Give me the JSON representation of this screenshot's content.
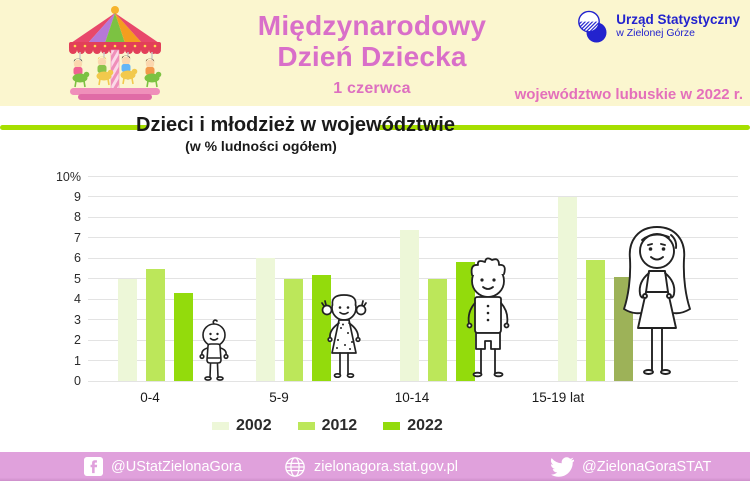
{
  "header": {
    "title_line1": "Międzynarodowy",
    "title_line2": "Dzień Dziecka",
    "date": "1 czerwca",
    "region_note": "województwo lubuskie w 2022 r.",
    "logo": {
      "line1": "Urząd Statystyczny",
      "line2": "w Zielonej Górze"
    }
  },
  "section": {
    "title": "Dzieci i młodzież w województwie",
    "subtitle": "(w % ludności ogółem)"
  },
  "chart_data": {
    "type": "bar",
    "title": "Dzieci i młodzież w województwie",
    "subtitle": "(w % ludności ogółem)",
    "unit": "% ludności ogółem",
    "categories": [
      "0-4",
      "5-9",
      "10-14",
      "15-19 lat"
    ],
    "series": [
      {
        "name": "2002",
        "color": "#EDF7D8",
        "values": [
          5.0,
          6.0,
          7.4,
          9.0
        ]
      },
      {
        "name": "2012",
        "color": "#BCE75A",
        "values": [
          5.5,
          5.0,
          5.0,
          5.9
        ]
      },
      {
        "name": "2022",
        "color": "#93DB0C",
        "values": [
          4.3,
          5.2,
          5.8,
          5.1
        ],
        "bar_colors": [
          null,
          null,
          null,
          "#9DB258"
        ]
      }
    ],
    "ylim": [
      0,
      10
    ],
    "y_ticks": [
      "0",
      "1",
      "2",
      "3",
      "4",
      "5",
      "6",
      "7",
      "8",
      "9",
      "10%"
    ],
    "grid": true,
    "legend_position": "bottom",
    "group_illustrations": [
      "baby",
      "young-girl",
      "boy",
      "teenage-girl"
    ]
  },
  "footer": {
    "facebook_handle": "@UStatZielonaGora",
    "website": "zielonagora.stat.gov.pl",
    "twitter_handle": "@ZielonaGoraSTAT"
  },
  "colors": {
    "header_bg": "#FBF6CF",
    "title_pink": "#D96FC9",
    "accent_green": "#A6DF00",
    "footer_pink": "#E0A1DC",
    "logo_blue": "#2323CE"
  }
}
